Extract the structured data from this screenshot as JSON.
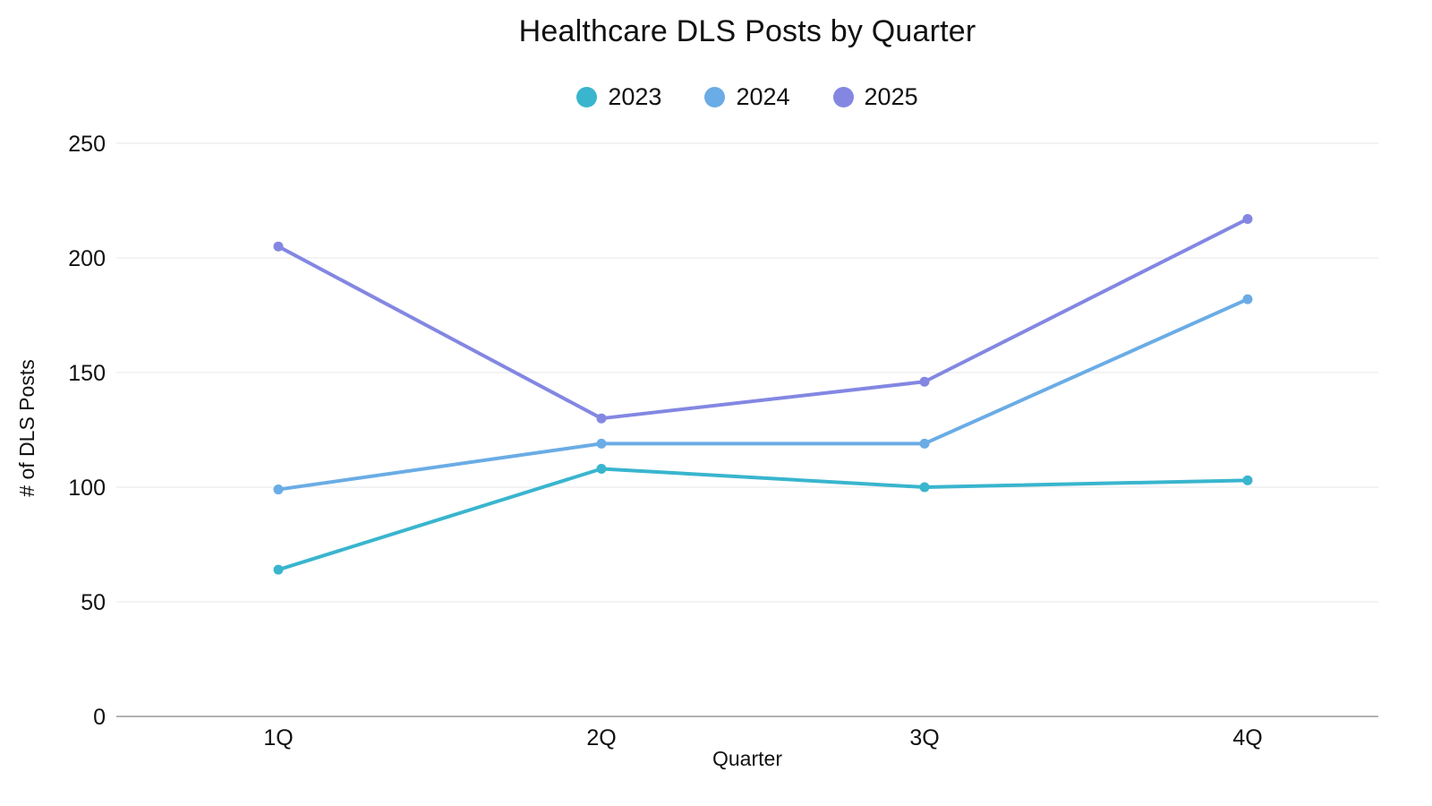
{
  "chart_data": {
    "type": "line",
    "title": "Healthcare DLS Posts by Quarter",
    "xlabel": "Quarter",
    "ylabel": "# of DLS Posts",
    "categories": [
      "1Q",
      "2Q",
      "3Q",
      "4Q"
    ],
    "series": [
      {
        "name": "2023",
        "color": "#39b5ce",
        "values": [
          64,
          108,
          100,
          103
        ]
      },
      {
        "name": "2024",
        "color": "#6aace5",
        "values": [
          99,
          119,
          119,
          182
        ]
      },
      {
        "name": "2025",
        "color": "#8387e2",
        "values": [
          205,
          130,
          146,
          217
        ]
      }
    ],
    "ylim": [
      0,
      250
    ],
    "yticks": [
      0,
      50,
      100,
      150,
      200,
      250
    ],
    "grid": true,
    "legend_position": "top",
    "colors": {
      "grid": "#e7e7e7",
      "axis": "#b3b3b3",
      "text": "#111111",
      "background": "#ffffff"
    }
  }
}
